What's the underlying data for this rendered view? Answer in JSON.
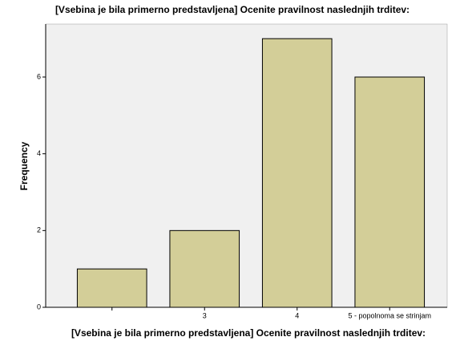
{
  "chart_data": {
    "type": "bar",
    "title": "[Vsebina je bila primerno predstavljena] Ocenite pravilnost naslednjih trditev:",
    "x_label": "[Vsebina je bila primerno predstavljena] Ocenite pravilnost naslednjih trditev:",
    "y_label": "Frequency",
    "categories": [
      null,
      "3",
      "4",
      "5 - popolnoma se strinjam"
    ],
    "values": [
      1,
      2,
      7,
      6
    ],
    "color": "#d3ce98",
    "ylim": [
      0,
      7.38
    ],
    "yticks": [
      0,
      2,
      4,
      6
    ],
    "grid": false
  }
}
